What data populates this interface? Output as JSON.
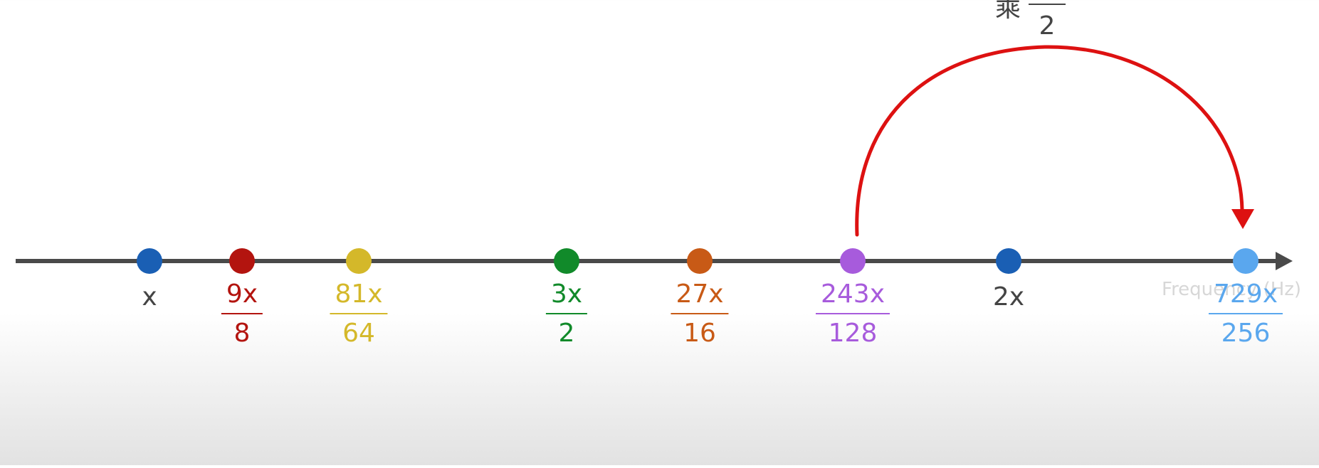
{
  "axis": {
    "unit_label": "Frequency (Hz)",
    "line_color": "#4a4a4a"
  },
  "caption": {
    "prefix": "乘",
    "denominator": "2"
  },
  "arc_color": "#dd1111",
  "points": [
    {
      "id": "x",
      "num": "x",
      "den": "",
      "ratio": 1.0,
      "color": "#1a5fb4",
      "label_color": "#444444"
    },
    {
      "id": "9x-8",
      "num": "9x",
      "den": "8",
      "ratio": 1.125,
      "color": "#b3140f",
      "label_color": "#b3140f"
    },
    {
      "id": "81x-64",
      "num": "81x",
      "den": "64",
      "ratio": 1.265625,
      "color": "#d4b82a",
      "label_color": "#d4b82a"
    },
    {
      "id": "3x-2",
      "num": "3x",
      "den": "2",
      "ratio": 1.5,
      "color": "#118a2a",
      "label_color": "#118a2a"
    },
    {
      "id": "27x-16",
      "num": "27x",
      "den": "16",
      "ratio": 1.6875,
      "color": "#c85a16",
      "label_color": "#c85a16"
    },
    {
      "id": "243x-128",
      "num": "243x",
      "den": "128",
      "ratio": 1.8984375,
      "color": "#a75bdc",
      "label_color": "#a75bdc"
    },
    {
      "id": "2x",
      "num": "2x",
      "den": "",
      "ratio": 2.0,
      "color": "#1a5fb4",
      "label_color": "#444444"
    },
    {
      "id": "729x-256",
      "num": "729x",
      "den": "256",
      "ratio": 2.84765625,
      "color": "#5aa7ee",
      "label_color": "#5aa7ee"
    }
  ]
}
